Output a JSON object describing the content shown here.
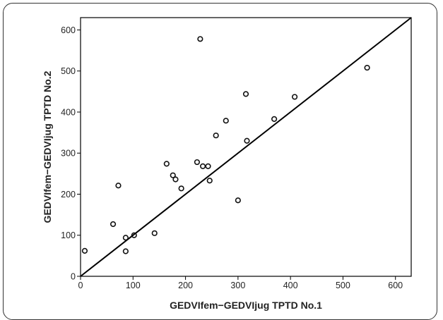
{
  "chart_data": {
    "type": "scatter",
    "title": "",
    "xlabel": "GEDVIfem−GEDVIjug TPTD No.1",
    "ylabel": "GEDVIfem−GEDVIjug TPTD No.2",
    "xlim": [
      0,
      630
    ],
    "ylim": [
      0,
      630
    ],
    "x_ticks": [
      0,
      100,
      200,
      300,
      400,
      500,
      600
    ],
    "y_ticks": [
      0,
      100,
      200,
      300,
      400,
      500,
      600
    ],
    "grid": false,
    "reference_line": {
      "from": [
        0,
        0
      ],
      "to": [
        630,
        630
      ],
      "label": "line of identity"
    },
    "points": [
      {
        "x": 8,
        "y": 62
      },
      {
        "x": 62,
        "y": 127
      },
      {
        "x": 72,
        "y": 221
      },
      {
        "x": 86,
        "y": 94
      },
      {
        "x": 86,
        "y": 61
      },
      {
        "x": 102,
        "y": 100
      },
      {
        "x": 141,
        "y": 105
      },
      {
        "x": 164,
        "y": 274
      },
      {
        "x": 176,
        "y": 246
      },
      {
        "x": 181,
        "y": 236
      },
      {
        "x": 192,
        "y": 214
      },
      {
        "x": 222,
        "y": 278
      },
      {
        "x": 228,
        "y": 578
      },
      {
        "x": 233,
        "y": 268
      },
      {
        "x": 243,
        "y": 268
      },
      {
        "x": 246,
        "y": 233
      },
      {
        "x": 258,
        "y": 343
      },
      {
        "x": 277,
        "y": 379
      },
      {
        "x": 300,
        "y": 185
      },
      {
        "x": 315,
        "y": 444
      },
      {
        "x": 317,
        "y": 330
      },
      {
        "x": 369,
        "y": 383
      },
      {
        "x": 408,
        "y": 437
      },
      {
        "x": 546,
        "y": 508
      }
    ]
  }
}
